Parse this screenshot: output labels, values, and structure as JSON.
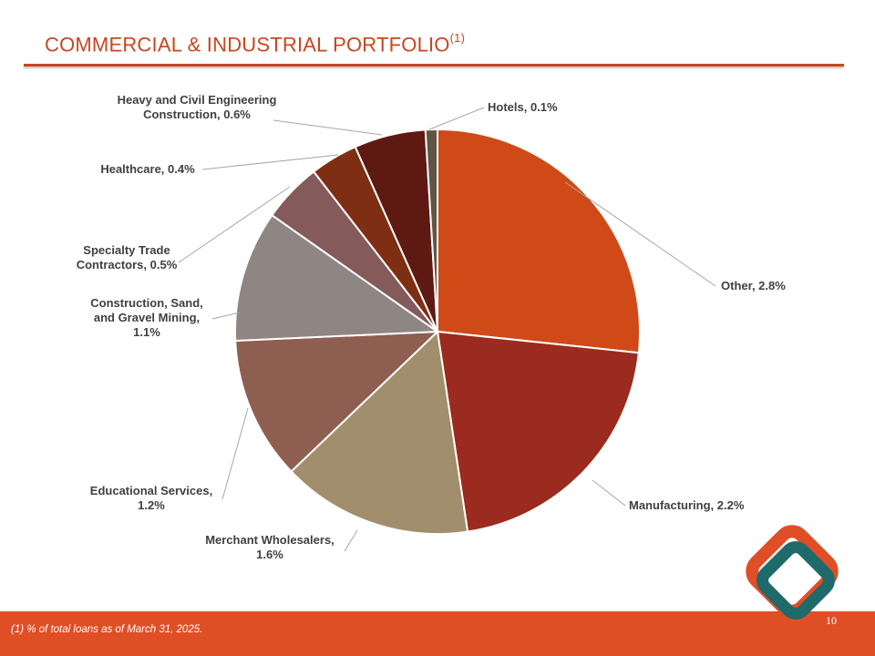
{
  "title": "COMMERCIAL & INDUSTRIAL PORTFOLIO",
  "title_superscript": "(1)",
  "footnote": "(1)  % of total loans as of March 31, 2025.",
  "page_number": "10",
  "colors": {
    "accent": "#c9461f",
    "footer": "#e04e26",
    "logo_orange": "#e04e26",
    "logo_teal": "#1f6a6a"
  },
  "logo_icon": "diamond-logo-icon",
  "chart_data": {
    "type": "pie",
    "title": "",
    "slices": [
      {
        "name": "Other",
        "value": 2.8,
        "label": "Other, 2.8%",
        "color": "#d04a18"
      },
      {
        "name": "Manufacturing",
        "value": 2.2,
        "label": "Manufacturing, 2.2%",
        "color": "#9a2b1e"
      },
      {
        "name": "Merchant Wholesalers",
        "value": 1.6,
        "label": "Merchant Wholesalers,\n1.6%",
        "color": "#a28d6c"
      },
      {
        "name": "Educational Services",
        "value": 1.2,
        "label": "Educational Services,\n1.2%",
        "color": "#8e5e50"
      },
      {
        "name": "Construction, Sand, and Gravel Mining",
        "value": 1.1,
        "label": "Construction, Sand,\nand Gravel Mining,\n1.1%",
        "color": "#8f8583"
      },
      {
        "name": "Specialty Trade Contractors",
        "value": 0.5,
        "label": "Specialty Trade\nContractors, 0.5%",
        "color": "#845a5a"
      },
      {
        "name": "Healthcare",
        "value": 0.4,
        "label": "Healthcare, 0.4%",
        "color": "#7e2e12"
      },
      {
        "name": "Heavy and Civil Engineering Construction",
        "value": 0.6,
        "label": "Heavy and Civil Engineering\nConstruction, 0.6%",
        "color": "#5e1a12"
      },
      {
        "name": "Hotels",
        "value": 0.1,
        "label": "Hotels, 0.1%",
        "color": "#5e5545"
      }
    ]
  }
}
